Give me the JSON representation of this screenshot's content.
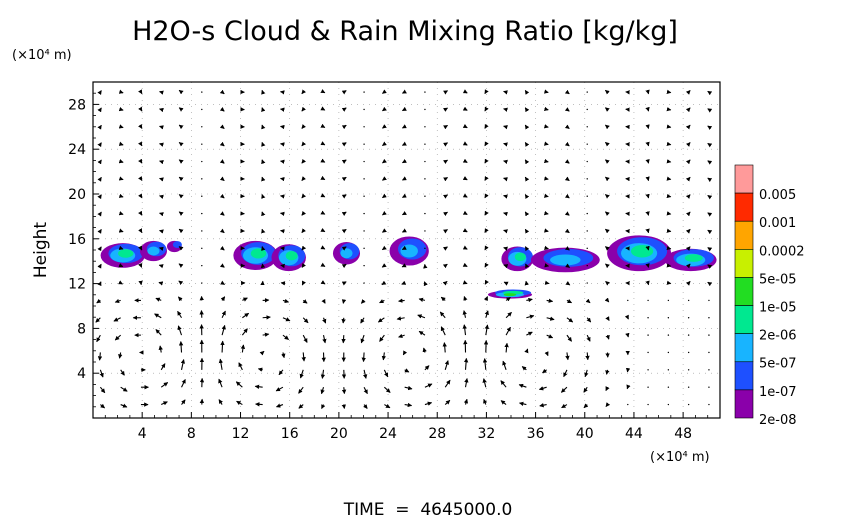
{
  "chart_data": {
    "type": "heatmap",
    "title": "H2O-s Cloud & Rain Mixing Ratio [kg/kg]",
    "ylabel": "Height",
    "y_unit": "(×10⁴ m)",
    "x_unit": "(×10⁴ m)",
    "footer": "TIME  =  4645000.0",
    "xlim": [
      0,
      51
    ],
    "ylim": [
      0,
      30
    ],
    "x_ticks": [
      "4",
      "8",
      "12",
      "16",
      "20",
      "24",
      "28",
      "32",
      "36",
      "40",
      "44",
      "48"
    ],
    "y_ticks": [
      "4",
      "8",
      "12",
      "16",
      "20",
      "24",
      "28"
    ],
    "grid": "dotted",
    "legend_placement": "right",
    "colorbar": [
      {
        "label": "0.005",
        "color": "#ff9a9a"
      },
      {
        "label": "0.001",
        "color": "#ff2a00"
      },
      {
        "label": "0.0002",
        "color": "#ffa500"
      },
      {
        "label": "5e-05",
        "color": "#c8f000"
      },
      {
        "label": "1e-05",
        "color": "#22dd22"
      },
      {
        "label": "2e-06",
        "color": "#00e890"
      },
      {
        "label": "5e-07",
        "color": "#18b4ff"
      },
      {
        "label": "1e-07",
        "color": "#1e50ff"
      },
      {
        "label": "2e-08",
        "color": "#8a00aa"
      }
    ],
    "clouds": [
      {
        "x": 2.5,
        "y": 14.6,
        "rx": 1.8,
        "ry": 1.1,
        "level": "2e-06"
      },
      {
        "x": 5.0,
        "y": 15.0,
        "rx": 1.1,
        "ry": 0.9,
        "level": "5e-07"
      },
      {
        "x": 6.7,
        "y": 15.4,
        "rx": 0.6,
        "ry": 0.5,
        "level": "1e-07"
      },
      {
        "x": 13.3,
        "y": 14.6,
        "rx": 1.8,
        "ry": 1.3,
        "level": "2e-06"
      },
      {
        "x": 16.0,
        "y": 14.4,
        "rx": 1.4,
        "ry": 1.2,
        "level": "2e-06"
      },
      {
        "x": 20.7,
        "y": 14.8,
        "rx": 1.1,
        "ry": 1.0,
        "level": "5e-07"
      },
      {
        "x": 25.8,
        "y": 15.0,
        "rx": 1.6,
        "ry": 1.3,
        "level": "5e-07"
      },
      {
        "x": 34.6,
        "y": 14.3,
        "rx": 1.3,
        "ry": 1.1,
        "level": "2e-06"
      },
      {
        "x": 38.5,
        "y": 14.2,
        "rx": 2.8,
        "ry": 1.1,
        "level": "5e-07"
      },
      {
        "x": 44.5,
        "y": 14.8,
        "rx": 2.6,
        "ry": 1.6,
        "level": "2e-06"
      },
      {
        "x": 48.7,
        "y": 14.2,
        "rx": 2.1,
        "ry": 1.0,
        "level": "2e-06"
      },
      {
        "x": 34.0,
        "y": 11.1,
        "rx": 1.8,
        "ry": 0.35,
        "level": "1e-05"
      }
    ],
    "vectors": "wind arrows on regular grid"
  }
}
